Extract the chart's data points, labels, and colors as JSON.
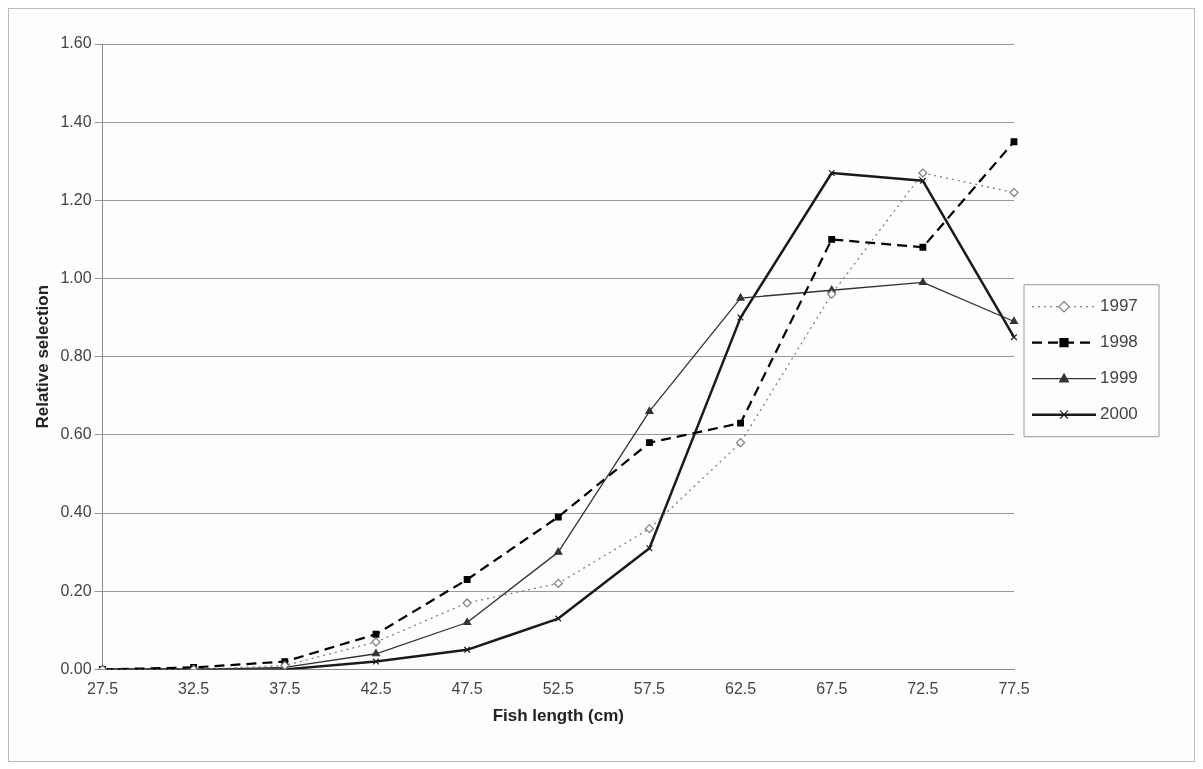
{
  "chart_data": {
    "type": "line",
    "xlabel": "Fish length (cm)",
    "ylabel": "Relative selection",
    "categories": [
      "27.5",
      "32.5",
      "37.5",
      "42.5",
      "47.5",
      "52.5",
      "57.5",
      "62.5",
      "67.5",
      "72.5",
      "77.5"
    ],
    "series": [
      {
        "name": "1997",
        "color": "#808080",
        "marker": "diamond",
        "line_style": "dotted",
        "values": [
          0,
          0,
          0.01,
          0.07,
          0.17,
          0.22,
          0.36,
          0.58,
          0.96,
          1.27,
          1.22
        ]
      },
      {
        "name": "1998",
        "color": "#000000",
        "marker": "square",
        "line_style": "dashed",
        "values": [
          0,
          0.005,
          0.02,
          0.09,
          0.23,
          0.39,
          0.58,
          0.63,
          1.1,
          1.08,
          1.35
        ]
      },
      {
        "name": "1999",
        "color": "#333333",
        "marker": "triangle",
        "line_style": "solid",
        "values": [
          0,
          0,
          0.005,
          0.04,
          0.12,
          0.3,
          0.66,
          0.95,
          0.97,
          0.99,
          0.89
        ]
      },
      {
        "name": "2000",
        "color": "#1a1a1a",
        "marker": "cross",
        "line_style": "solid",
        "values": [
          0,
          0,
          0,
          0.02,
          0.05,
          0.13,
          0.31,
          0.9,
          1.27,
          1.25,
          0.85
        ]
      }
    ],
    "ylim": [
      0,
      1.6
    ],
    "yticks": [
      {
        "value": 0,
        "label": "0.00"
      },
      {
        "value": 0.2,
        "label": "0.20"
      },
      {
        "value": 0.4,
        "label": "0.40"
      },
      {
        "value": 0.6,
        "label": "0.60"
      },
      {
        "value": 0.8,
        "label": "0.80"
      },
      {
        "value": 1,
        "label": "1.00"
      },
      {
        "value": 1.2,
        "label": "1.20"
      },
      {
        "value": 1.4,
        "label": "1.40"
      },
      {
        "value": 1.6,
        "label": "1.60"
      }
    ],
    "grid": "y",
    "legend": "right"
  }
}
